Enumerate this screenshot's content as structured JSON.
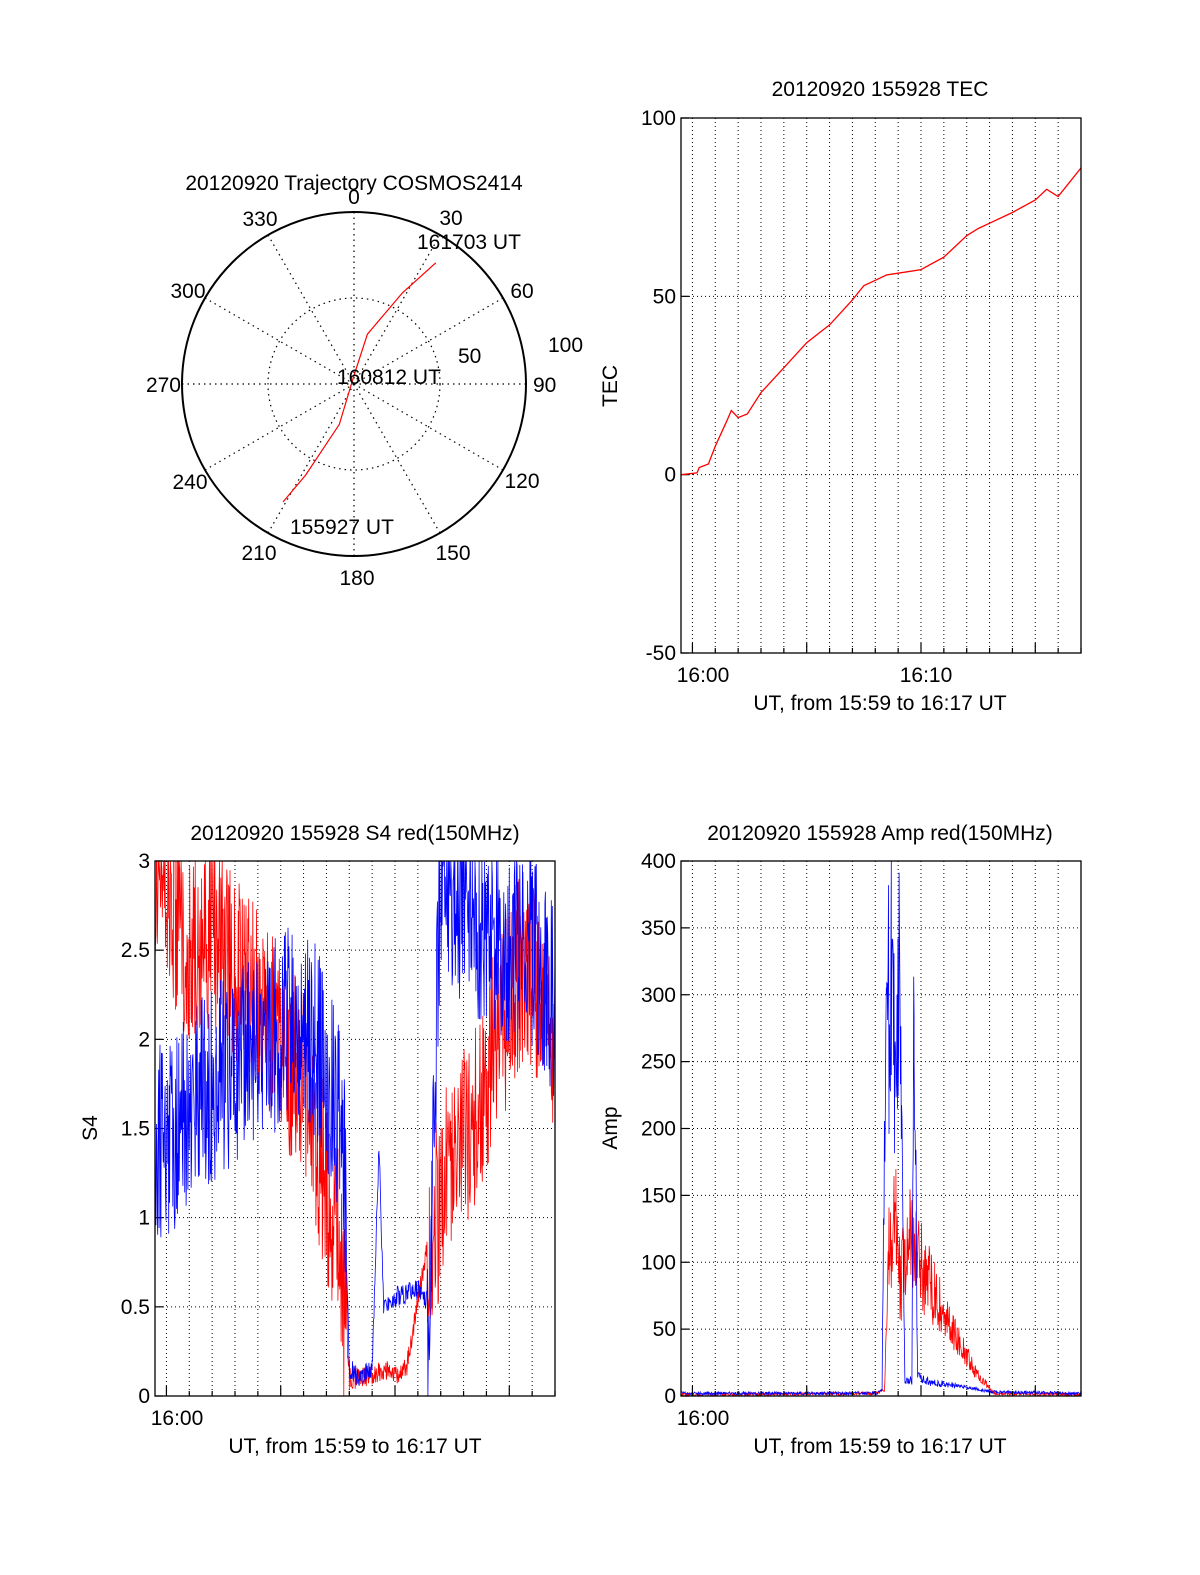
{
  "colors": {
    "red": "#ff0000",
    "blue": "#0000ff",
    "axis": "#000000",
    "grid": "#000000",
    "background": "#ffffff"
  },
  "chart_data": [
    {
      "id": "polar",
      "type": "polar",
      "title": "20120920 Trajectory COSMOS2414",
      "azimuth_labels": [
        "0",
        "30",
        "60",
        "90",
        "120",
        "150",
        "180",
        "210",
        "240",
        "270",
        "300",
        "330"
      ],
      "ring_labels": [
        "50",
        "100"
      ],
      "grid": true,
      "annotations": [
        "161703 UT",
        "160812 UT",
        "155927 UT"
      ],
      "series": [
        {
          "color": "red",
          "points_az_r": [
            [
              34,
              85
            ],
            [
              28,
              60
            ],
            [
              15,
              30
            ],
            [
              0,
              5
            ],
            [
              200,
              25
            ],
            [
              208,
              60
            ],
            [
              211,
              80
            ]
          ]
        }
      ]
    },
    {
      "id": "tec",
      "type": "line",
      "title": "20120920 155928 TEC",
      "xlabel": "UT, from 15:59 to 16:17 UT",
      "ylabel": "TEC",
      "x_tick_labels": [
        "16:00",
        "16:10"
      ],
      "xlim_minutes": [
        -0.5,
        17
      ],
      "ylim": [
        -50,
        100
      ],
      "y_ticks": [
        -50,
        0,
        50,
        100
      ],
      "grid": true,
      "series": [
        {
          "color": "red",
          "points": [
            [
              -0.5,
              0
            ],
            [
              0.2,
              0.5
            ],
            [
              0.3,
              2
            ],
            [
              0.7,
              3
            ],
            [
              1.0,
              8
            ],
            [
              1.5,
              15
            ],
            [
              1.7,
              18
            ],
            [
              2.0,
              16
            ],
            [
              2.4,
              17
            ],
            [
              3.0,
              23
            ],
            [
              4.0,
              30
            ],
            [
              5.0,
              37
            ],
            [
              5.6,
              40
            ],
            [
              6.0,
              42
            ],
            [
              7.0,
              49
            ],
            [
              7.5,
              53
            ],
            [
              8.0,
              54.5
            ],
            [
              8.5,
              56
            ],
            [
              9.0,
              56.5
            ],
            [
              10.0,
              57.5
            ],
            [
              11.0,
              61
            ],
            [
              12.0,
              67
            ],
            [
              12.5,
              69
            ],
            [
              13.0,
              70.5
            ],
            [
              14.0,
              73.5
            ],
            [
              15.0,
              77
            ],
            [
              15.5,
              80
            ],
            [
              16.0,
              78
            ],
            [
              16.5,
              82
            ],
            [
              17.0,
              86
            ]
          ]
        }
      ]
    },
    {
      "id": "s4",
      "type": "line",
      "title": "20120920 155928 S4 red(150MHz)",
      "xlabel": "UT, from 15:59 to 16:17 UT",
      "ylabel": "S4",
      "x_tick_labels": [
        "16:00"
      ],
      "xlim_minutes": [
        -0.5,
        17
      ],
      "ylim": [
        0,
        3
      ],
      "y_ticks": [
        0,
        0.5,
        1,
        1.5,
        2,
        2.5,
        3
      ],
      "y_tick_labels": [
        "0",
        "0.5",
        "1",
        "1.5",
        "2",
        "2.5",
        "3"
      ],
      "grid": true,
      "series": [
        {
          "color": "red",
          "points": [
            [
              -0.5,
              3.0
            ],
            [
              1.0,
              2.5
            ],
            [
              2.0,
              2.6
            ],
            [
              3.0,
              2.4
            ],
            [
              4.0,
              2.2
            ],
            [
              5.0,
              2.0
            ],
            [
              6.0,
              1.7
            ],
            [
              7.0,
              1.2
            ],
            [
              7.5,
              0.9
            ],
            [
              8.0,
              0.1
            ],
            [
              8.5,
              0.1
            ],
            [
              9.0,
              0.12
            ],
            [
              9.5,
              0.15
            ],
            [
              10.0,
              0.12
            ],
            [
              10.5,
              0.15
            ],
            [
              11.5,
              0.9
            ],
            [
              12.5,
              1.3
            ],
            [
              13.5,
              1.6
            ],
            [
              14.5,
              2.0
            ],
            [
              15.5,
              2.4
            ],
            [
              16.5,
              2.3
            ],
            [
              17.0,
              1.8
            ]
          ]
        },
        {
          "color": "blue",
          "points": [
            [
              -0.5,
              1.4
            ],
            [
              0.5,
              1.5
            ],
            [
              1.5,
              1.7
            ],
            [
              2.5,
              1.8
            ],
            [
              3.5,
              1.9
            ],
            [
              4.5,
              2.0
            ],
            [
              5.5,
              2.1
            ],
            [
              6.5,
              2.0
            ],
            [
              7.5,
              1.6
            ],
            [
              7.8,
              1.2
            ],
            [
              8.0,
              0.15
            ],
            [
              8.5,
              0.1
            ],
            [
              9.0,
              0.15
            ],
            [
              9.3,
              1.4
            ],
            [
              9.5,
              0.5
            ],
            [
              10.0,
              0.55
            ],
            [
              11.0,
              0.6
            ],
            [
              11.5,
              0.5
            ],
            [
              12.0,
              3.0
            ],
            [
              13.0,
              2.7
            ],
            [
              14.0,
              2.6
            ],
            [
              15.0,
              2.5
            ],
            [
              16.0,
              2.5
            ],
            [
              17.0,
              2.2
            ]
          ]
        }
      ]
    },
    {
      "id": "amp",
      "type": "line",
      "title": "20120920 155928 Amp red(150MHz)",
      "xlabel": "UT, from 15:59 to 16:17 UT",
      "ylabel": "Amp",
      "x_tick_labels": [
        "16:00"
      ],
      "xlim_minutes": [
        -0.5,
        17
      ],
      "ylim": [
        0,
        400
      ],
      "y_ticks": [
        0,
        50,
        100,
        150,
        200,
        250,
        300,
        350,
        400
      ],
      "grid": true,
      "series": [
        {
          "color": "red",
          "points": [
            [
              -0.5,
              1
            ],
            [
              8.0,
              2
            ],
            [
              8.4,
              4
            ],
            [
              8.6,
              110
            ],
            [
              8.9,
              130
            ],
            [
              9.1,
              80
            ],
            [
              9.4,
              120
            ],
            [
              9.7,
              110
            ],
            [
              10.2,
              90
            ],
            [
              10.6,
              75
            ],
            [
              11.0,
              60
            ],
            [
              11.5,
              45
            ],
            [
              12.0,
              30
            ],
            [
              12.4,
              18
            ],
            [
              12.8,
              10
            ],
            [
              13.2,
              2
            ],
            [
              17.0,
              1
            ]
          ]
        },
        {
          "color": "blue",
          "points": [
            [
              -0.5,
              2
            ],
            [
              8.1,
              2
            ],
            [
              8.3,
              5
            ],
            [
              8.4,
              200
            ],
            [
              8.5,
              320
            ],
            [
              8.6,
              280
            ],
            [
              8.7,
              355
            ],
            [
              8.85,
              250
            ],
            [
              9.0,
              340
            ],
            [
              9.15,
              180
            ],
            [
              9.3,
              10
            ],
            [
              9.6,
              12
            ],
            [
              9.7,
              300
            ],
            [
              9.85,
              15
            ],
            [
              10.5,
              10
            ],
            [
              11.5,
              8
            ],
            [
              12.5,
              5
            ],
            [
              13.0,
              3
            ],
            [
              17.0,
              2
            ]
          ]
        }
      ]
    }
  ]
}
